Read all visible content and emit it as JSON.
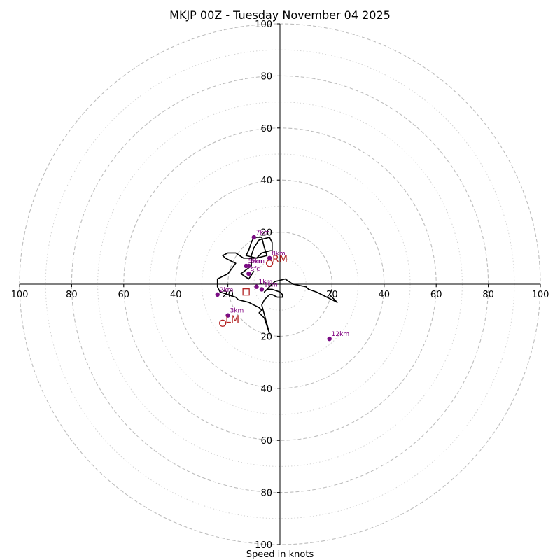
{
  "chart_data": {
    "type": "scatter",
    "title": "MKJP 00Z - Tuesday November 04 2025",
    "xlabel": "Speed in knots",
    "ylabel": "",
    "xlim": [
      -100,
      100
    ],
    "ylim": [
      -100,
      100
    ],
    "ring_major": [
      20,
      40,
      60,
      80,
      100
    ],
    "ring_minor": [
      10,
      30,
      50,
      70,
      90
    ],
    "ticks_left": [
      "100",
      "80",
      "60",
      "40",
      "20"
    ],
    "ticks_right": [
      "20",
      "40",
      "60",
      "80",
      "100"
    ],
    "ticks_top": [
      "100",
      "80",
      "60",
      "40",
      "20"
    ],
    "ticks_bottom": [
      "20",
      "40",
      "60",
      "80",
      "100"
    ],
    "hodograph_trace": {
      "x": [
        -10,
        -12,
        -15,
        -11,
        -11,
        -10,
        -8,
        -4,
        -3,
        -3,
        -7,
        -9,
        -13,
        -12,
        -11,
        -10,
        -7,
        -6,
        -5,
        -9,
        -14,
        -17,
        -20,
        -22,
        -21,
        -19,
        -17,
        -20,
        -24,
        -24,
        -23,
        -20,
        -17,
        -16,
        -12,
        -10,
        -8,
        -7,
        -8,
        -6,
        -5,
        -4,
        -7,
        -6,
        -5,
        -4,
        -3,
        -1,
        1,
        1,
        0,
        -3,
        -5,
        -6,
        -5,
        -4,
        -2,
        2,
        5,
        10,
        11,
        14,
        16,
        18,
        20,
        22,
        19,
        20
      ],
      "y": [
        5,
        2,
        4,
        7,
        11,
        14,
        17,
        18,
        16,
        13,
        12,
        10,
        11,
        13,
        16,
        18,
        18,
        14,
        11,
        10,
        10,
        12,
        12,
        11,
        10,
        9,
        8,
        4,
        2,
        -1,
        -3,
        -4,
        -5,
        -6,
        -7,
        -8,
        -9,
        -10,
        -11,
        -13,
        -16,
        -19,
        -8,
        -6,
        -5,
        -4,
        -4,
        -5,
        -5,
        -4,
        -3,
        -2,
        -2,
        -3,
        -2,
        -1,
        1,
        2,
        0,
        -1,
        -2,
        -3,
        -4,
        -5,
        -6,
        -7,
        -4,
        -2
      ]
    },
    "height_markers": [
      {
        "label": "sfc",
        "x": -12,
        "y": 4
      },
      {
        "label": "1km",
        "x": -7,
        "y": -2
      },
      {
        "label": "1km",
        "x": -9,
        "y": -1
      },
      {
        "label": "2km",
        "x": -24,
        "y": -4
      },
      {
        "label": "3km",
        "x": -20,
        "y": -12
      },
      {
        "label": "5km",
        "x": -13,
        "y": 7
      },
      {
        "label": "6km",
        "x": -12,
        "y": 7
      },
      {
        "label": "7km",
        "x": -10,
        "y": 18
      },
      {
        "label": "8km",
        "x": -4,
        "y": 10
      },
      {
        "label": "12km",
        "x": 19,
        "y": -21
      }
    ],
    "storm_motions": [
      {
        "label": "RM",
        "x": -4,
        "y": 8
      },
      {
        "label": "LM",
        "x": -22,
        "y": -15
      }
    ],
    "mean_wind": {
      "x": -13,
      "y": -3
    },
    "colors": {
      "trace": "#000000",
      "markers": "#7b0d84",
      "marker_labels": "#800080",
      "storm_motion": "#b22222",
      "rings": "#bdbdbd"
    }
  }
}
